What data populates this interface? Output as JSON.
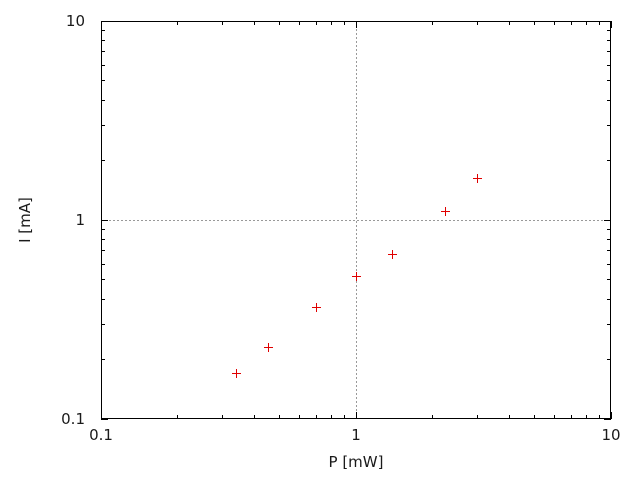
{
  "chart_data": {
    "type": "scatter",
    "title": "",
    "xlabel": "P [mW]",
    "ylabel": "I [mA]",
    "xscale": "log",
    "yscale": "log",
    "xlim": [
      0.1,
      10
    ],
    "ylim": [
      0.1,
      10
    ],
    "x_ticks": [
      {
        "value": 0.1,
        "label": "0.1"
      },
      {
        "value": 1,
        "label": "1"
      },
      {
        "value": 10,
        "label": "10"
      }
    ],
    "y_ticks": [
      {
        "value": 0.1,
        "label": "0.1"
      },
      {
        "value": 1,
        "label": "1"
      },
      {
        "value": 10,
        "label": "10"
      }
    ],
    "minor_ticks": true,
    "grid": {
      "x_values": [
        1
      ],
      "y_values": [
        1
      ],
      "style": "dotted",
      "color": "#999999"
    },
    "legend": "none",
    "background": "#ffffff",
    "border_color": "#000000",
    "text_color": "#1a1a1a",
    "series": [
      {
        "marker": "plus",
        "color": "#e00000",
        "points": [
          {
            "x": 0.34,
            "y": 0.17
          },
          {
            "x": 0.455,
            "y": 0.23
          },
          {
            "x": 0.7,
            "y": 0.365
          },
          {
            "x": 1.0,
            "y": 0.52
          },
          {
            "x": 1.39,
            "y": 0.67
          },
          {
            "x": 2.25,
            "y": 1.1
          },
          {
            "x": 3.0,
            "y": 1.61
          }
        ]
      }
    ]
  }
}
